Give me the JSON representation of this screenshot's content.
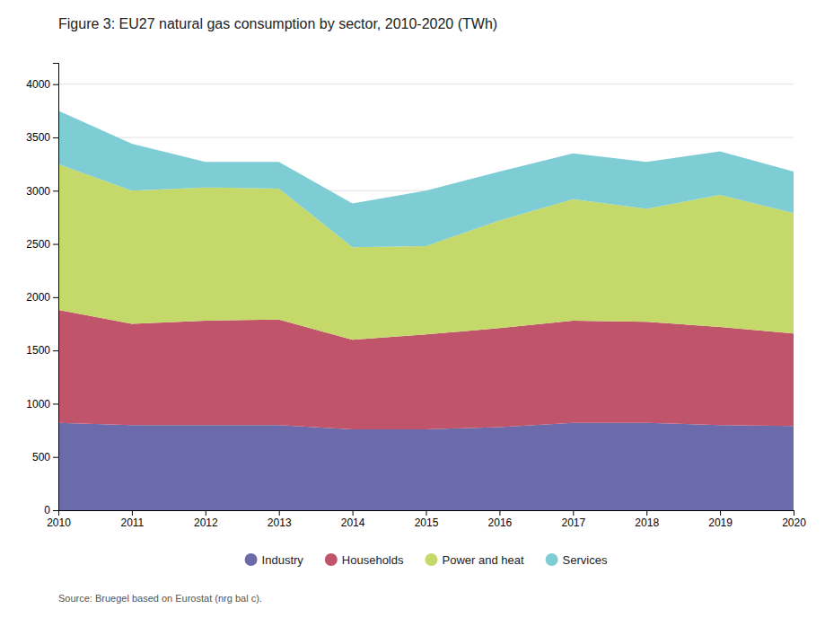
{
  "chart_data": {
    "type": "area",
    "stacked": true,
    "title": "Figure 3: EU27 natural gas consumption by sector, 2010-2020 (TWh)",
    "annotations": [
      "Source: Bruegel based on Eurostat (nrg bal c)."
    ],
    "x": [
      2010,
      2011,
      2012,
      2013,
      2014,
      2015,
      2016,
      2017,
      2018,
      2019,
      2020
    ],
    "xlim": [
      2010,
      2020
    ],
    "xticks": [
      2010,
      2011,
      2012,
      2013,
      2014,
      2015,
      2016,
      2017,
      2018,
      2019,
      2020
    ],
    "ylim": [
      0,
      4200
    ],
    "yticks": [
      0,
      500,
      1000,
      1500,
      2000,
      2500,
      3000,
      3500,
      4000
    ],
    "grid": true,
    "legend": "bottom",
    "series": [
      {
        "name": "Industry",
        "color": "#6b6bab",
        "values": [
          820,
          800,
          800,
          800,
          760,
          760,
          780,
          820,
          820,
          800,
          790
        ]
      },
      {
        "name": "Households",
        "color": "#c0546a",
        "values": [
          1060,
          950,
          980,
          990,
          840,
          890,
          930,
          960,
          950,
          920,
          870
        ]
      },
      {
        "name": "Power and heat",
        "color": "#c5d96b",
        "values": [
          1370,
          1250,
          1250,
          1230,
          870,
          830,
          1010,
          1140,
          1060,
          1240,
          1130
        ]
      },
      {
        "name": "Services",
        "color": "#7ecdd4",
        "values": [
          500,
          440,
          240,
          250,
          410,
          520,
          460,
          430,
          440,
          410,
          390
        ]
      }
    ]
  }
}
